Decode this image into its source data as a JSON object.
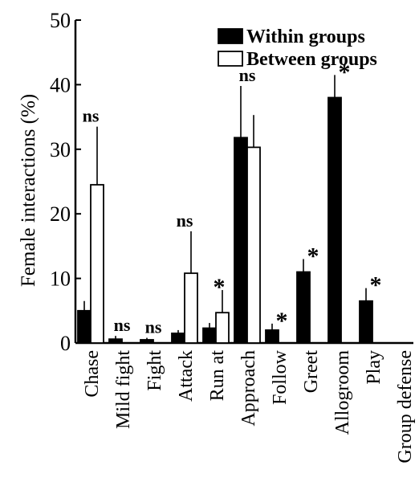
{
  "chart_data": {
    "type": "bar",
    "ylabel": "Female interactions (%)",
    "ylim": [
      0,
      50
    ],
    "yticks": [
      0,
      10,
      20,
      30,
      40,
      50
    ],
    "grid": false,
    "legend_position": "top-right",
    "categories": [
      "Chase",
      "Mild fight",
      "Fight",
      "Attack",
      "Run at",
      "Approach",
      "Follow",
      "Greet",
      "Allogroom",
      "Play",
      "Group defense"
    ],
    "series": [
      {
        "name": "Within groups",
        "fill": "#000000",
        "values": [
          5,
          0.6,
          0.5,
          1.5,
          2.3,
          31.8,
          2,
          11,
          38,
          6.5,
          0
        ],
        "errors": [
          1.5,
          0.5,
          0.3,
          0.5,
          0.8,
          8,
          1,
          2,
          3.5,
          2,
          0
        ]
      },
      {
        "name": "Between groups",
        "fill": "#ffffff",
        "values": [
          24.5,
          0,
          0,
          10.8,
          4.7,
          30.3,
          0,
          0,
          0,
          0,
          0
        ],
        "errors": [
          9,
          0,
          0,
          6.5,
          3.5,
          5,
          0,
          0,
          0,
          0,
          0
        ]
      }
    ],
    "annotations": [
      {
        "category": "Chase",
        "text": "ns"
      },
      {
        "category": "Mild fight",
        "text": "ns"
      },
      {
        "category": "Fight",
        "text": "ns"
      },
      {
        "category": "Attack",
        "text": "ns"
      },
      {
        "category": "Run at",
        "text": "*"
      },
      {
        "category": "Approach",
        "text": "ns"
      },
      {
        "category": "Follow",
        "text": "*"
      },
      {
        "category": "Greet",
        "text": "*"
      },
      {
        "category": "Allogroom",
        "text": "*"
      },
      {
        "category": "Play",
        "text": "*"
      }
    ]
  }
}
